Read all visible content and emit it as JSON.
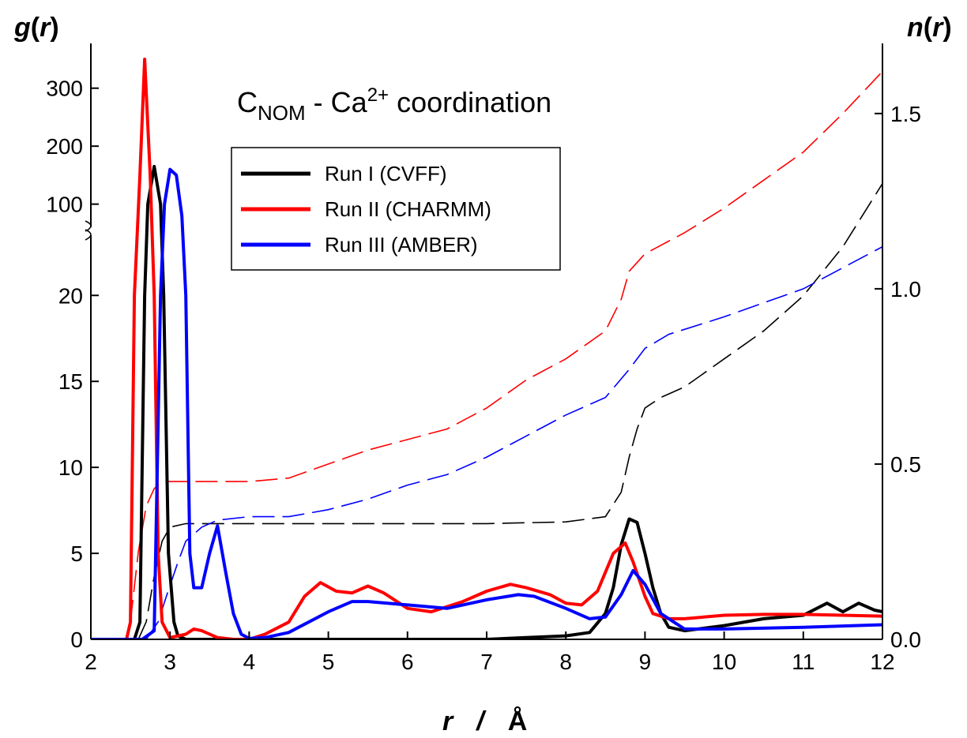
{
  "chart_data": {
    "type": "line",
    "title": {
      "main": "C",
      "sub": "NOM",
      "mid": " - Ca",
      "sup": "2+",
      "tail": " coordination"
    },
    "xlabel": {
      "var": "r",
      "sep": "/",
      "unit": "Å"
    },
    "ylabel_left": {
      "fn": "g",
      "open": "(",
      "var": "r",
      "close": ")"
    },
    "ylabel_right": {
      "fn": "n",
      "open": "(",
      "var": "r",
      "close": ")"
    },
    "xlim": [
      2,
      12
    ],
    "x_ticks": [
      2,
      3,
      4,
      5,
      6,
      7,
      8,
      9,
      10,
      11,
      12
    ],
    "x_tick_labels": [
      "2",
      "3",
      "4",
      "5",
      "6",
      "7",
      "8",
      "9",
      "10",
      "11",
      "12"
    ],
    "y_left": {
      "broken": true,
      "lower_range": [
        0,
        23.5
      ],
      "upper_range": [
        60,
        350
      ],
      "lower_ticks": [
        0,
        5,
        10,
        15,
        20
      ],
      "lower_tick_labels": [
        "0",
        "5",
        "10",
        "15",
        "20"
      ],
      "upper_ticks": [
        100,
        200,
        300
      ],
      "upper_tick_labels": [
        "100",
        "200",
        "300"
      ]
    },
    "y_right": {
      "range": [
        0,
        1.7
      ],
      "ticks": [
        0,
        0.5,
        1.0,
        1.5
      ],
      "tick_labels": [
        "0.0",
        "0.5",
        "1.0",
        "1.5"
      ]
    },
    "legend": {
      "placement": "upper-left",
      "entries": [
        {
          "label": "Run I (CVFF)",
          "color": "#000000"
        },
        {
          "label": "Run II (CHARMM)",
          "color": "#ff0000"
        },
        {
          "label": "Run III (AMBER)",
          "color": "#0000ff"
        }
      ]
    },
    "series": [
      {
        "name": "Run I (CVFF)",
        "color": "#000000",
        "g": [
          [
            2,
            0
          ],
          [
            2.55,
            0
          ],
          [
            2.62,
            1
          ],
          [
            2.68,
            20
          ],
          [
            2.72,
            100
          ],
          [
            2.8,
            165
          ],
          [
            2.88,
            100
          ],
          [
            2.92,
            20
          ],
          [
            2.98,
            5
          ],
          [
            3.05,
            1
          ],
          [
            3.1,
            0.2
          ],
          [
            3.2,
            0
          ],
          [
            4,
            0
          ],
          [
            5,
            0
          ],
          [
            6,
            0
          ],
          [
            7,
            0
          ],
          [
            7.5,
            0.1
          ],
          [
            8,
            0.2
          ],
          [
            8.3,
            0.4
          ],
          [
            8.5,
            1.5
          ],
          [
            8.6,
            3
          ],
          [
            8.7,
            5.5
          ],
          [
            8.8,
            7
          ],
          [
            8.9,
            6.8
          ],
          [
            9.0,
            5
          ],
          [
            9.1,
            3
          ],
          [
            9.2,
            1.5
          ],
          [
            9.3,
            0.7
          ],
          [
            9.5,
            0.5
          ],
          [
            10,
            0.8
          ],
          [
            10.5,
            1.2
          ],
          [
            11,
            1.4
          ],
          [
            11.3,
            2.1
          ],
          [
            11.5,
            1.6
          ],
          [
            11.7,
            2.1
          ],
          [
            11.9,
            1.7
          ],
          [
            12,
            1.6
          ]
        ],
        "n": [
          [
            2.6,
            0
          ],
          [
            2.7,
            0.05
          ],
          [
            2.8,
            0.18
          ],
          [
            2.9,
            0.28
          ],
          [
            3.0,
            0.32
          ],
          [
            3.2,
            0.33
          ],
          [
            4,
            0.33
          ],
          [
            5,
            0.33
          ],
          [
            6,
            0.33
          ],
          [
            7,
            0.33
          ],
          [
            8,
            0.335
          ],
          [
            8.5,
            0.35
          ],
          [
            8.7,
            0.42
          ],
          [
            8.8,
            0.52
          ],
          [
            8.9,
            0.6
          ],
          [
            9.0,
            0.66
          ],
          [
            9.2,
            0.69
          ],
          [
            9.5,
            0.72
          ],
          [
            10,
            0.8
          ],
          [
            10.5,
            0.88
          ],
          [
            11,
            0.98
          ],
          [
            11.5,
            1.12
          ],
          [
            12,
            1.3
          ]
        ]
      },
      {
        "name": "Run II (CHARMM)",
        "color": "#ff0000",
        "g": [
          [
            2,
            0
          ],
          [
            2.45,
            0
          ],
          [
            2.5,
            1
          ],
          [
            2.55,
            20
          ],
          [
            2.62,
            150
          ],
          [
            2.68,
            350
          ],
          [
            2.75,
            150
          ],
          [
            2.8,
            20
          ],
          [
            2.85,
            5
          ],
          [
            2.9,
            1
          ],
          [
            3.0,
            0.1
          ],
          [
            3.2,
            0.3
          ],
          [
            3.3,
            0.6
          ],
          [
            3.4,
            0.5
          ],
          [
            3.6,
            0.1
          ],
          [
            3.8,
            0
          ],
          [
            4.0,
            0
          ],
          [
            4.2,
            0.3
          ],
          [
            4.5,
            1
          ],
          [
            4.7,
            2.5
          ],
          [
            4.9,
            3.3
          ],
          [
            5.1,
            2.8
          ],
          [
            5.3,
            2.7
          ],
          [
            5.5,
            3.1
          ],
          [
            5.7,
            2.7
          ],
          [
            6,
            1.8
          ],
          [
            6.3,
            1.6
          ],
          [
            6.7,
            2.2
          ],
          [
            7,
            2.8
          ],
          [
            7.3,
            3.2
          ],
          [
            7.5,
            3
          ],
          [
            7.8,
            2.6
          ],
          [
            8,
            2.1
          ],
          [
            8.2,
            2.0
          ],
          [
            8.4,
            2.8
          ],
          [
            8.6,
            5
          ],
          [
            8.75,
            5.6
          ],
          [
            8.85,
            4.5
          ],
          [
            9.0,
            2.5
          ],
          [
            9.1,
            1.5
          ],
          [
            9.3,
            1.2
          ],
          [
            9.5,
            1.2
          ],
          [
            10,
            1.4
          ],
          [
            10.5,
            1.45
          ],
          [
            11,
            1.45
          ],
          [
            11.5,
            1.4
          ],
          [
            12,
            1.35
          ]
        ],
        "n": [
          [
            2.5,
            0.05
          ],
          [
            2.6,
            0.25
          ],
          [
            2.7,
            0.38
          ],
          [
            2.8,
            0.43
          ],
          [
            2.9,
            0.45
          ],
          [
            3.5,
            0.45
          ],
          [
            4,
            0.45
          ],
          [
            4.5,
            0.46
          ],
          [
            5,
            0.5
          ],
          [
            5.5,
            0.54
          ],
          [
            6,
            0.57
          ],
          [
            6.5,
            0.6
          ],
          [
            7,
            0.66
          ],
          [
            7.5,
            0.74
          ],
          [
            8,
            0.8
          ],
          [
            8.5,
            0.88
          ],
          [
            8.7,
            0.97
          ],
          [
            8.8,
            1.05
          ],
          [
            9.0,
            1.1
          ],
          [
            9.5,
            1.16
          ],
          [
            10,
            1.23
          ],
          [
            10.5,
            1.31
          ],
          [
            11,
            1.39
          ],
          [
            11.5,
            1.5
          ],
          [
            12,
            1.62
          ]
        ]
      },
      {
        "name": "Run III (AMBER)",
        "color": "#0000ff",
        "g": [
          [
            2,
            0
          ],
          [
            2.65,
            0
          ],
          [
            2.8,
            0.5
          ],
          [
            2.88,
            20
          ],
          [
            2.93,
            100
          ],
          [
            3.0,
            160
          ],
          [
            3.08,
            150
          ],
          [
            3.15,
            80
          ],
          [
            3.2,
            20
          ],
          [
            3.25,
            5
          ],
          [
            3.3,
            3
          ],
          [
            3.4,
            3
          ],
          [
            3.5,
            5
          ],
          [
            3.6,
            6.6
          ],
          [
            3.7,
            4
          ],
          [
            3.8,
            1.5
          ],
          [
            3.9,
            0.3
          ],
          [
            4.0,
            0.05
          ],
          [
            4.2,
            0.1
          ],
          [
            4.5,
            0.4
          ],
          [
            5,
            1.6
          ],
          [
            5.3,
            2.2
          ],
          [
            5.5,
            2.2
          ],
          [
            6,
            2
          ],
          [
            6.5,
            1.8
          ],
          [
            7,
            2.3
          ],
          [
            7.4,
            2.6
          ],
          [
            7.6,
            2.5
          ],
          [
            8,
            1.8
          ],
          [
            8.3,
            1.2
          ],
          [
            8.5,
            1.3
          ],
          [
            8.7,
            2.6
          ],
          [
            8.85,
            4
          ],
          [
            9.0,
            3.2
          ],
          [
            9.2,
            1.5
          ],
          [
            9.5,
            0.6
          ],
          [
            10,
            0.6
          ],
          [
            11,
            0.7
          ],
          [
            12,
            0.85
          ]
        ],
        "n": [
          [
            2.7,
            0
          ],
          [
            2.85,
            0.05
          ],
          [
            2.95,
            0.12
          ],
          [
            3.1,
            0.22
          ],
          [
            3.2,
            0.28
          ],
          [
            3.4,
            0.32
          ],
          [
            3.6,
            0.34
          ],
          [
            4,
            0.35
          ],
          [
            4.5,
            0.35
          ],
          [
            5,
            0.37
          ],
          [
            5.5,
            0.4
          ],
          [
            6,
            0.44
          ],
          [
            6.5,
            0.47
          ],
          [
            7,
            0.52
          ],
          [
            7.5,
            0.58
          ],
          [
            8,
            0.64
          ],
          [
            8.5,
            0.69
          ],
          [
            8.8,
            0.77
          ],
          [
            9.0,
            0.83
          ],
          [
            9.3,
            0.87
          ],
          [
            10,
            0.92
          ],
          [
            10.5,
            0.96
          ],
          [
            11,
            1.0
          ],
          [
            11.5,
            1.06
          ],
          [
            12,
            1.12
          ]
        ]
      }
    ],
    "grid": false
  }
}
